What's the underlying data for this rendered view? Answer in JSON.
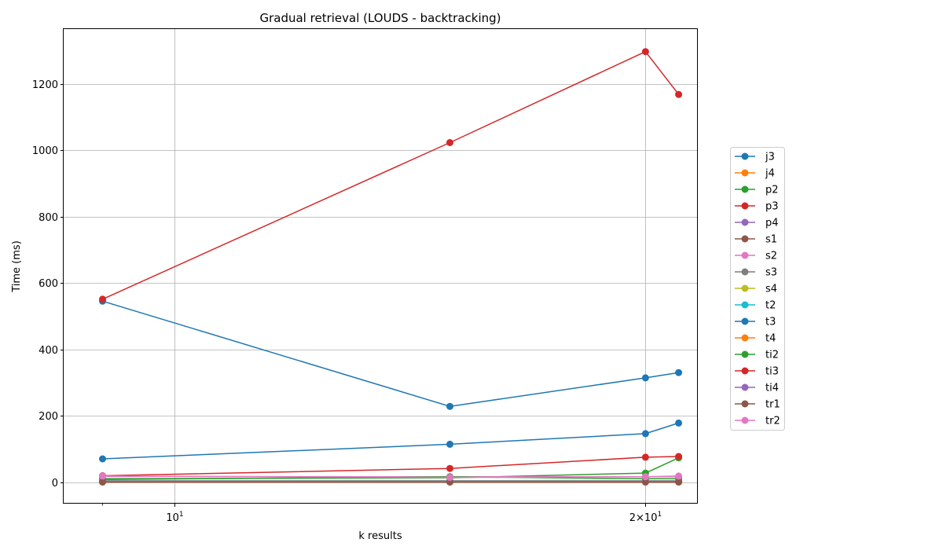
{
  "chart_data": {
    "type": "line",
    "title": "Gradual retrieval (LOUDS - backtracking)",
    "xlabel": "k results",
    "ylabel": "Time (ms)",
    "x_scale": "log",
    "xlim": [
      8.5,
      21.6
    ],
    "ylim": [
      -65,
      1365
    ],
    "x": [
      9,
      15,
      20,
      21
    ],
    "y_ticks": [
      0,
      200,
      400,
      600,
      800,
      1000,
      1200
    ],
    "x_major_ticks": [
      {
        "value": 10,
        "base": "10",
        "exp": "1"
      },
      {
        "value": 20,
        "base": "2×10",
        "exp": "1"
      }
    ],
    "x_minor_ticks": [
      9
    ],
    "grid": true,
    "legend_position": "right",
    "series": [
      {
        "name": "j3",
        "color": "#1f77b4",
        "values": [
          70,
          114,
          146,
          178
        ]
      },
      {
        "name": "j4",
        "color": "#ff7f0e",
        "values": [
          0,
          0,
          0,
          0
        ]
      },
      {
        "name": "p2",
        "color": "#2ca02c",
        "values": [
          10,
          13,
          27,
          73
        ]
      },
      {
        "name": "p3",
        "color": "#d62728",
        "values": [
          19,
          41,
          75,
          77
        ]
      },
      {
        "name": "p4",
        "color": "#9467bd",
        "values": [
          1,
          1,
          1,
          1
        ]
      },
      {
        "name": "s1",
        "color": "#8c564b",
        "values": [
          0,
          0,
          0,
          0
        ]
      },
      {
        "name": "s2",
        "color": "#e377c2",
        "values": [
          17,
          16,
          16,
          16
        ]
      },
      {
        "name": "s3",
        "color": "#7f7f7f",
        "values": [
          4,
          4,
          4,
          4
        ]
      },
      {
        "name": "s4",
        "color": "#bcbd22",
        "values": [
          1,
          1,
          1,
          1
        ]
      },
      {
        "name": "t2",
        "color": "#17becf",
        "values": [
          2,
          2,
          2,
          2
        ]
      },
      {
        "name": "t3",
        "color": "#1f77b4",
        "values": [
          545,
          228,
          314,
          330
        ]
      },
      {
        "name": "t4",
        "color": "#ff7f0e",
        "values": [
          0,
          0,
          0,
          0
        ]
      },
      {
        "name": "ti2",
        "color": "#2ca02c",
        "values": [
          8,
          16,
          10,
          10
        ]
      },
      {
        "name": "ti3",
        "color": "#d62728",
        "values": [
          551,
          1023,
          1297,
          1168
        ]
      },
      {
        "name": "ti4",
        "color": "#9467bd",
        "values": [
          1,
          1,
          1,
          1
        ]
      },
      {
        "name": "tr1",
        "color": "#8c564b",
        "values": [
          0,
          0,
          0,
          0
        ]
      },
      {
        "name": "tr2",
        "color": "#e377c2",
        "values": [
          18,
          14,
          16,
          18
        ]
      }
    ]
  }
}
